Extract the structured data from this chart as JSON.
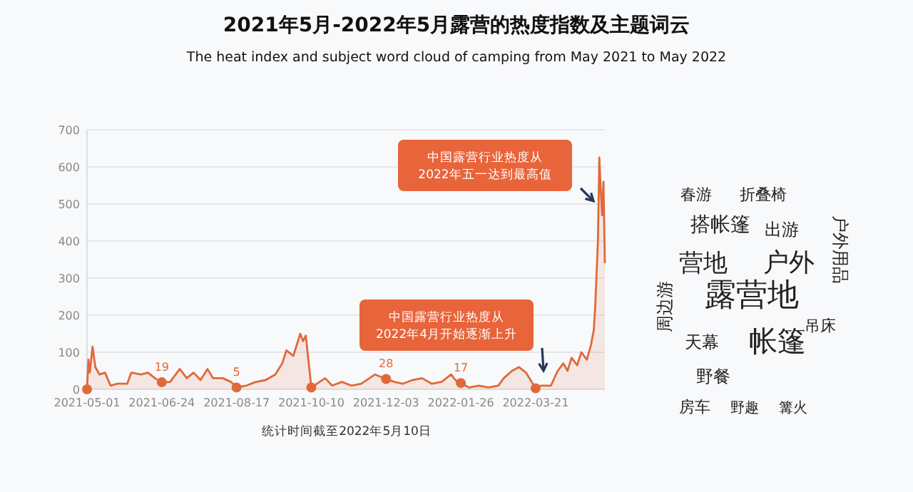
{
  "chart_data": [
    {
      "type": "area",
      "title": "2021年5月-2022年5月露营的热度指数及主题词云",
      "subtitle": "The heat index and subject word cloud of camping from May 2021 to May 2022",
      "series": [
        {
          "type": "area",
          "color": "#e0693a",
          "x": [
            "2021-05-01",
            "2021-05-02",
            "2021-05-03",
            "2021-05-05",
            "2021-05-07",
            "2021-05-10",
            "2021-05-14",
            "2021-05-18",
            "2021-05-23",
            "2021-05-30",
            "2021-06-02",
            "2021-06-09",
            "2021-06-14",
            "2021-06-19",
            "2021-06-24",
            "2021-06-30",
            "2021-07-07",
            "2021-07-12",
            "2021-07-17",
            "2021-07-22",
            "2021-07-27",
            "2021-07-31",
            "2021-08-07",
            "2021-08-13",
            "2021-08-17",
            "2021-08-24",
            "2021-08-31",
            "2021-09-07",
            "2021-09-14",
            "2021-09-19",
            "2021-09-22",
            "2021-09-27",
            "2021-10-02",
            "2021-10-04",
            "2021-10-06",
            "2021-10-10",
            "2021-10-20",
            "2021-10-25",
            "2021-11-01",
            "2021-11-08",
            "2021-11-15",
            "2021-11-21",
            "2021-11-25",
            "2021-12-03",
            "2021-12-09",
            "2021-12-15",
            "2021-12-22",
            "2021-12-29",
            "2022-01-05",
            "2022-01-12",
            "2022-01-19",
            "2022-01-22",
            "2022-01-26",
            "2022-02-01",
            "2022-02-08",
            "2022-02-15",
            "2022-02-22",
            "2022-02-26",
            "2022-03-04",
            "2022-03-09",
            "2022-03-14",
            "2022-03-21",
            "2022-03-25",
            "2022-04-01",
            "2022-04-06",
            "2022-04-10",
            "2022-04-13",
            "2022-04-16",
            "2022-04-20",
            "2022-04-23",
            "2022-04-27",
            "2022-04-30",
            "2022-05-02",
            "2022-05-03",
            "2022-05-05",
            "2022-05-06",
            "2022-05-07",
            "2022-05-08",
            "2022-05-09",
            "2022-05-10"
          ],
          "values": [
            0,
            80,
            45,
            115,
            60,
            40,
            45,
            10,
            15,
            15,
            45,
            40,
            45,
            30,
            19,
            20,
            55,
            30,
            45,
            25,
            55,
            30,
            30,
            20,
            5,
            10,
            20,
            25,
            40,
            70,
            105,
            90,
            150,
            130,
            145,
            5,
            30,
            10,
            20,
            10,
            15,
            30,
            40,
            28,
            20,
            15,
            25,
            30,
            15,
            20,
            40,
            25,
            17,
            5,
            10,
            5,
            10,
            30,
            50,
            60,
            45,
            3,
            10,
            10,
            50,
            70,
            50,
            85,
            65,
            100,
            80,
            120,
            160,
            220,
            400,
            625,
            540,
            470,
            560,
            340
          ]
        },
        {
          "type": "scatter",
          "color": "#e0693a",
          "x": [
            "2021-05-01",
            "2021-06-24",
            "2021-08-17",
            "2021-10-10",
            "2021-12-03",
            "2022-01-26",
            "2022-03-21"
          ],
          "values": [
            0,
            19,
            5,
            5,
            28,
            17,
            3
          ],
          "marker": "circle",
          "value_labels": [
            null,
            "19",
            "5",
            null,
            "28",
            "17",
            null
          ]
        }
      ],
      "xlim": [
        "2021-05-01",
        "2022-05-10"
      ],
      "xticks": [
        "2021-05-01",
        "2021-06-24",
        "2021-08-17",
        "2021-10-10",
        "2021-12-03",
        "2022-01-26",
        "2022-03-21"
      ],
      "ylim": [
        0,
        700
      ],
      "yticks": [
        0,
        100,
        200,
        300,
        400,
        500,
        600,
        700
      ],
      "grid": "y",
      "annotations": [
        "中国露营行业热度从\n2022年五一达到最高值",
        "中国露营行业热度从\n2022年4月开始逐渐上升",
        "统计时间截至2022年5月10日"
      ]
    },
    {
      "type": "other",
      "annotations": [
        "露营地",
        "帐篷",
        "户外",
        "营地",
        "搭帐篷",
        "户外用品",
        "出游",
        "春游",
        "折叠椅",
        "周边游",
        "天幕",
        "吊床",
        "野餐",
        "房车",
        "野趣",
        "篝火"
      ]
    }
  ]
}
